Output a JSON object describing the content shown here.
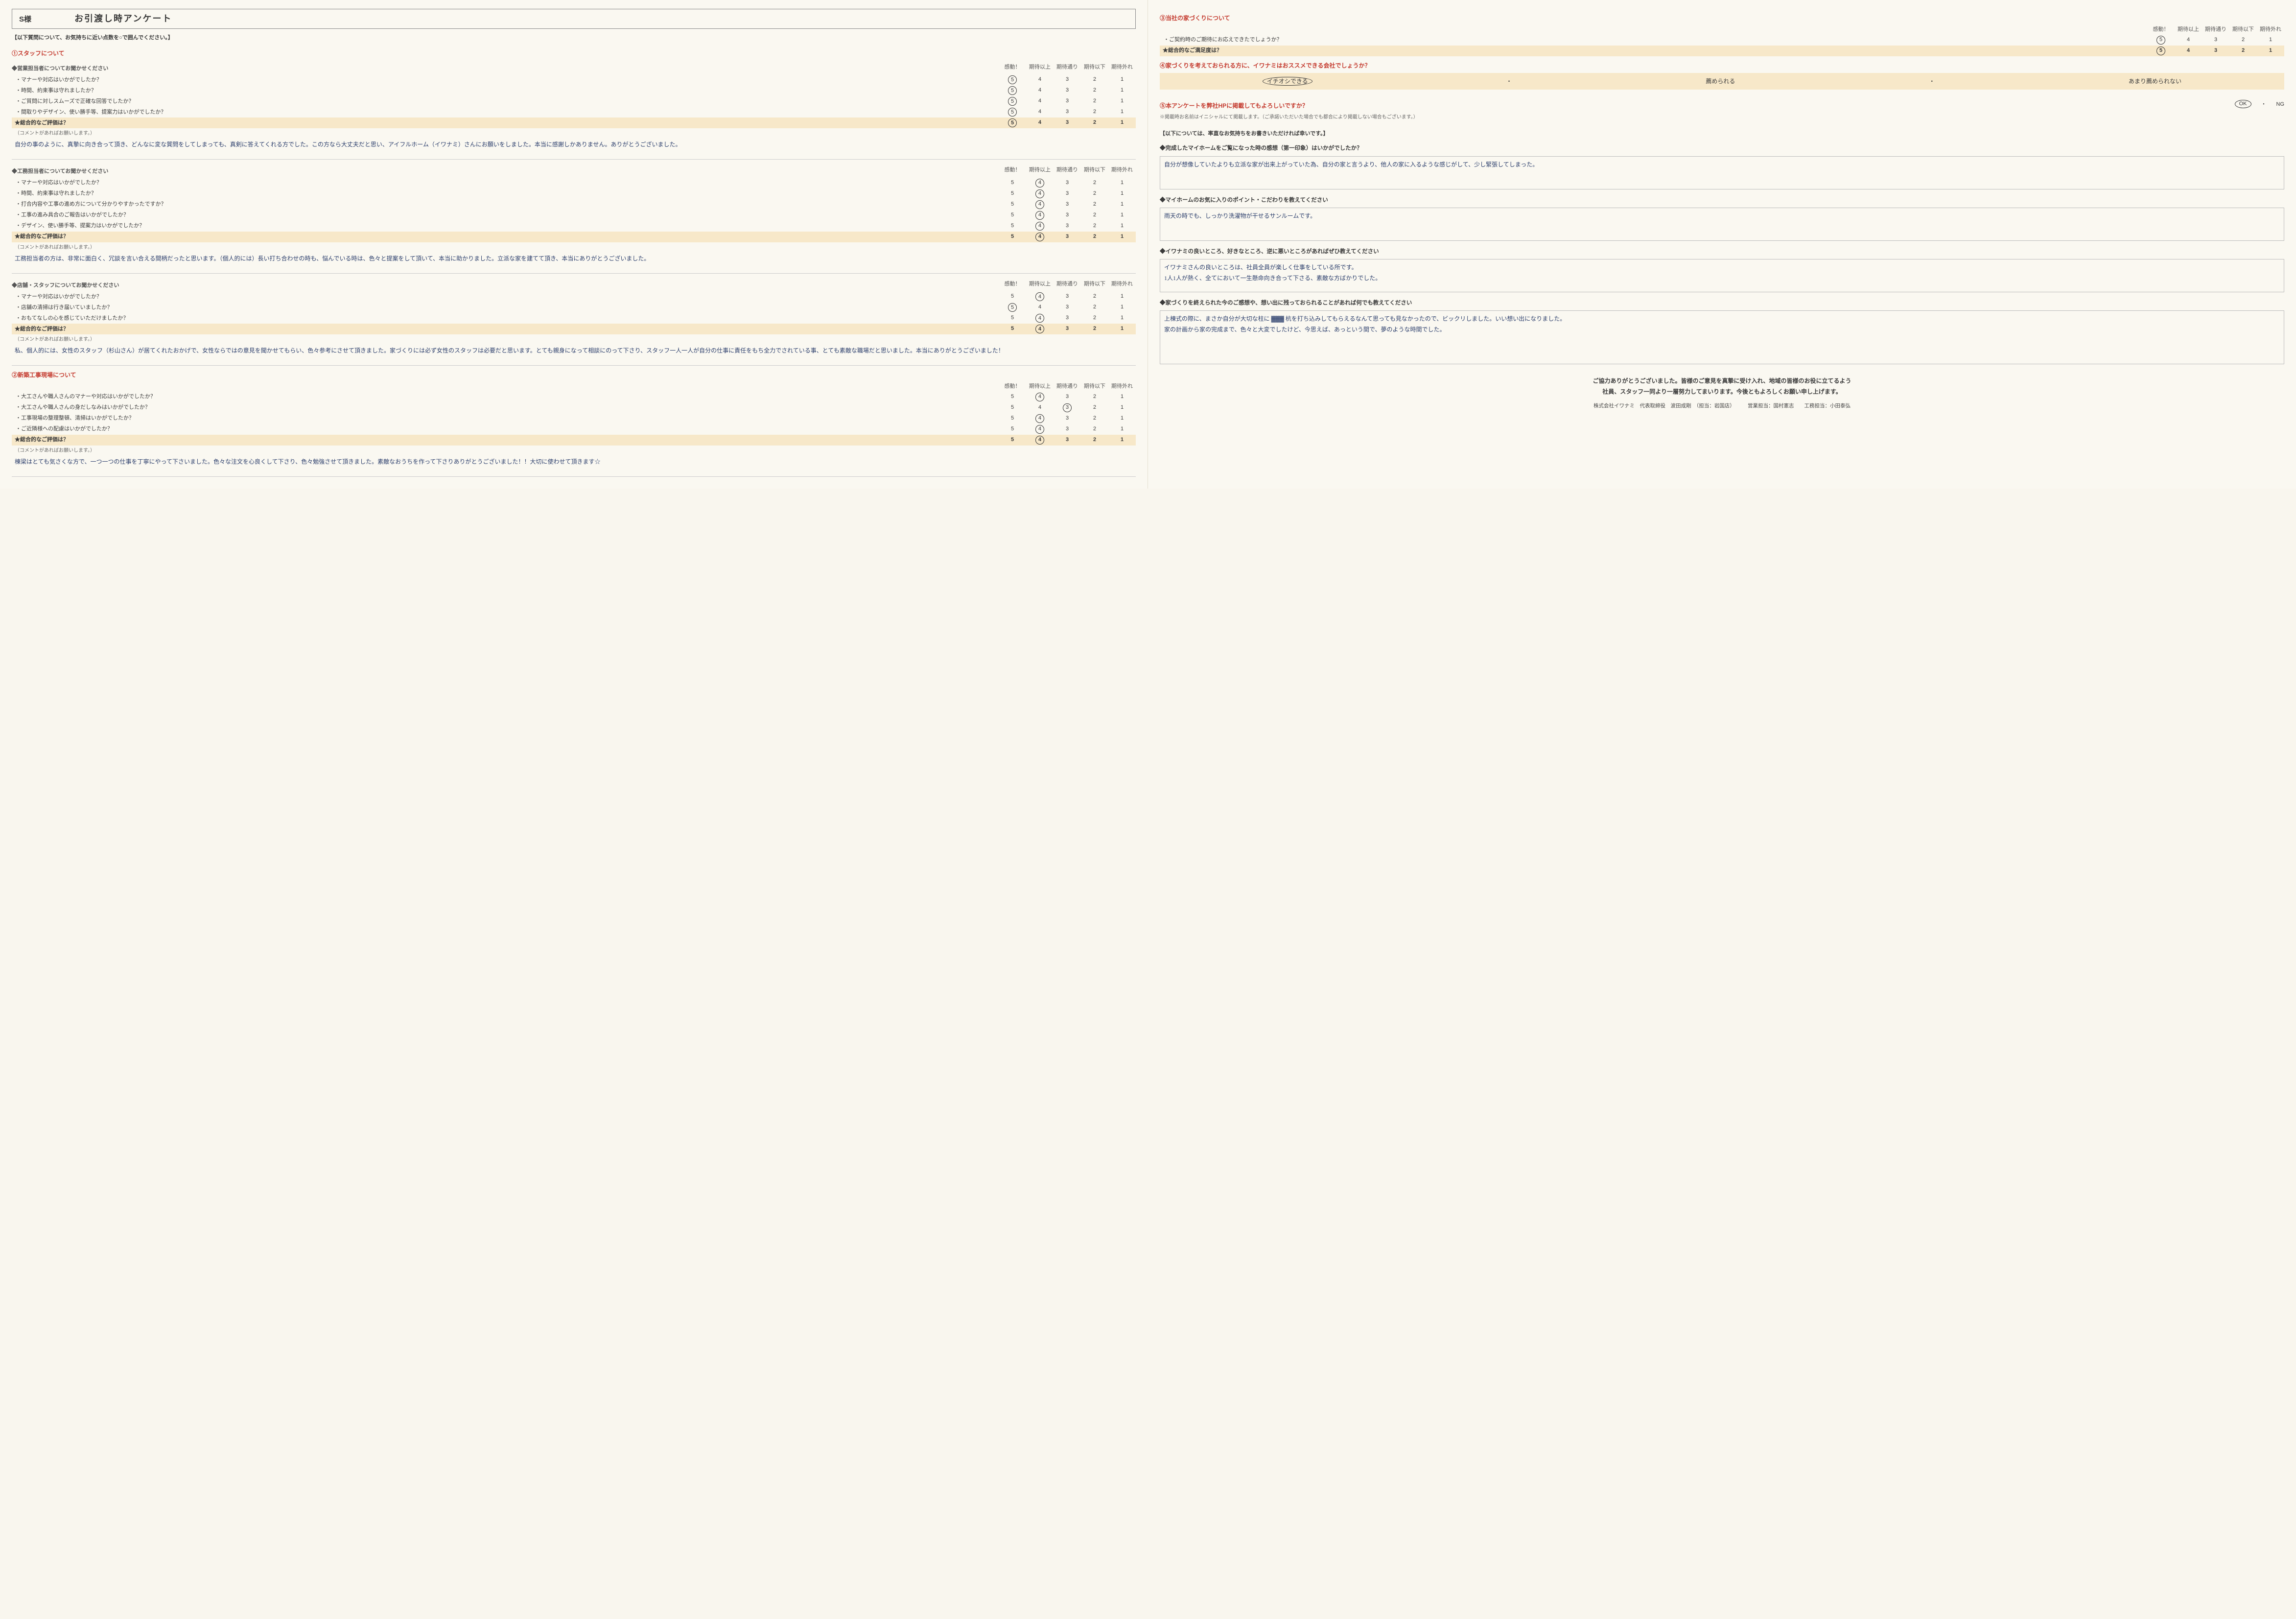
{
  "header": {
    "customer_name": "S様",
    "title": "お引渡し時アンケート",
    "instruction": "【以下質問について、お気持ちに近い点数を○で囲んでください。】"
  },
  "scale_labels": [
    "感動！",
    "期待以上",
    "期待通り",
    "期待以下",
    "期待外れ"
  ],
  "scale_values": [
    "5",
    "4",
    "3",
    "2",
    "1"
  ],
  "total_label": "★総合的なご評価は？",
  "comment_prompt": "（コメントがあればお願いします。）",
  "sec1": {
    "title": "①スタッフについて",
    "g1": {
      "heading": "◆営業担当者についてお聞かせください",
      "rows": [
        {
          "label": "マナーや対応はいかがでしたか？",
          "circled": 0
        },
        {
          "label": "時間、約束事は守れましたか？",
          "circled": 0
        },
        {
          "label": "ご質問に対しスムーズで正確な回答でしたか？",
          "circled": 0
        },
        {
          "label": "間取りやデザイン、使い勝手等、提案力はいかがでしたか？",
          "circled": 0
        }
      ],
      "total_circled": 0,
      "comment": "自分の事のように、真摯に向き合って頂き、どんなに変な質問をしてしまっても、真剣に答えてくれる方でした。この方なら大丈夫だと思い、アイフルホーム（イワナミ）さんにお願いをしました。本当に感謝しかありません。ありがとうございました。"
    },
    "g2": {
      "heading": "◆工務担当者についてお聞かせください",
      "rows": [
        {
          "label": "マナーや対応はいかがでしたか？",
          "circled": 1
        },
        {
          "label": "時間、約束事は守れましたか？",
          "circled": 1
        },
        {
          "label": "打合内容や工事の進め方について分かりやすかったですか？",
          "circled": 1
        },
        {
          "label": "工事の進み具合のご報告はいかがでしたか？",
          "circled": 1
        },
        {
          "label": "デザイン、使い勝手等、提案力はいかがでしたか？",
          "circled": 1
        }
      ],
      "total_circled": 1,
      "comment": "工務担当者の方は、非常に面白く、冗談を言い合える間柄だったと思います。（個人的には）長い打ち合わせの時も、悩んでいる時は、色々と提案をして頂いて、本当に助かりました。立派な家を建てて頂き、本当にありがとうございました。"
    },
    "g3": {
      "heading": "◆店舗・スタッフについてお聞かせください",
      "rows": [
        {
          "label": "マナーや対応はいかがでしたか？",
          "circled": 1
        },
        {
          "label": "店舗の清掃は行き届いていましたか？",
          "circled": 0
        },
        {
          "label": "おもてなしの心を感じていただけましたか？",
          "circled": 1
        }
      ],
      "total_circled": 1,
      "comment": "私、個人的には、女性のスタッフ（杉山さん）が居てくれたおかげで、女性ならではの意見を聞かせてもらい、色々参考にさせて頂きました。家づくりには必ず女性のスタッフは必要だと思います。とても親身になって相談にのって下さり、スタッフ一人一人が自分の仕事に責任をもち全力でされている事、とても素敵な職場だと思いました。本当にありがとうございました！"
    }
  },
  "sec2": {
    "title": "②新築工事現場について",
    "rows": [
      {
        "label": "大工さんや職人さんのマナーや対応はいかがでしたか？",
        "circled": 1
      },
      {
        "label": "大工さんや職人さんの身だしなみはいかがでしたか？",
        "circled": 2
      },
      {
        "label": "工事現場の整理整頓、清掃はいかがでしたか？",
        "circled": 1
      },
      {
        "label": "ご近隣様への配慮はいかがでしたか？",
        "circled": 1
      }
    ],
    "total_circled": 1,
    "comment": "棟梁はとても気さくな方で、一つ一つの仕事を丁寧にやって下さいました。色々な注文を心良くして下さり、色々勉強させて頂きました。素敵なおうちを作って下さりありがとうございました！！大切に使わせて頂きます☆"
  },
  "sec3": {
    "title": "③当社の家づくりについて",
    "rows": [
      {
        "label": "ご契約時のご期待にお応えできたでしょうか？",
        "circled": 0
      }
    ],
    "total_label": "★総合的なご満足度は？",
    "total_circled": 0
  },
  "sec4": {
    "title": "④家づくりを考えておられる方に、イワナミはおススメできる会社でしょうか？",
    "options": [
      "イチオシできる",
      "薦められる",
      "あまり薦められない"
    ],
    "circled": 0
  },
  "sec5": {
    "title": "⑤本アンケートを弊社HPに掲載してもよろしいですか？",
    "options": [
      "OK",
      "NG"
    ],
    "circled": 0,
    "note": "※掲載時お名前はイニシャルにて掲載します。（ご承諾いただいた場合でも都合により掲載しない場合もございます。）"
  },
  "free": {
    "intro": "【以下については、率直なお気持ちをお書きいただければ幸いです。】",
    "q1": {
      "label": "◆完成したマイホームをご覧になった時の感想（第一印象）はいかがでしたか？",
      "answer": "自分が想像していたよりも立派な家が出来上がっていた為、自分の家と言うより、他人の家に入るような感じがして、少し緊張してしまった。"
    },
    "q2": {
      "label": "◆マイホームのお気に入りのポイント・こだわりを教えてください",
      "answer": "雨天の時でも、しっかり洗濯物が干せるサンルームです。"
    },
    "q3": {
      "label": "◆イワナミの良いところ、好きなところ、逆に悪いところがあればぜひ教えてください",
      "answer": "イワナミさんの良いところは、社員全員が楽しく仕事をしている所です。\n1人1人が熱く、全てにおいて一生懸命向き合って下さる、素敵な方ばかりでした。"
    },
    "q4": {
      "label": "◆家づくりを終えられた今のご感想や、想い出に残っておられることがあれば何でも教えてください",
      "answer": "上棟式の際に、まさか自分が大切な柱に ▓▓▓ 杭を打ち込みしてもらえるなんて思っても見なかったので、ビックリしました。いい想い出になりました。\n家の計画から家の完成まで、色々と大変でしたけど、今思えば、あっという間で、夢のような時間でした。"
    }
  },
  "closing": {
    "line1": "ご協力ありがとうございました。皆様のご意見を真摯に受け入れ、地域の皆様のお役に立てるよう",
    "line2": "社員、スタッフ一同より一層努力してまいります。今後ともよろしくお願い申し上げます。",
    "footer": "株式会社イワナミ　代表取締役　波田成剛　（担当：岩国店）　　　営業担当：国村憲志　　工務担当：小田泰弘"
  },
  "dot": "・"
}
